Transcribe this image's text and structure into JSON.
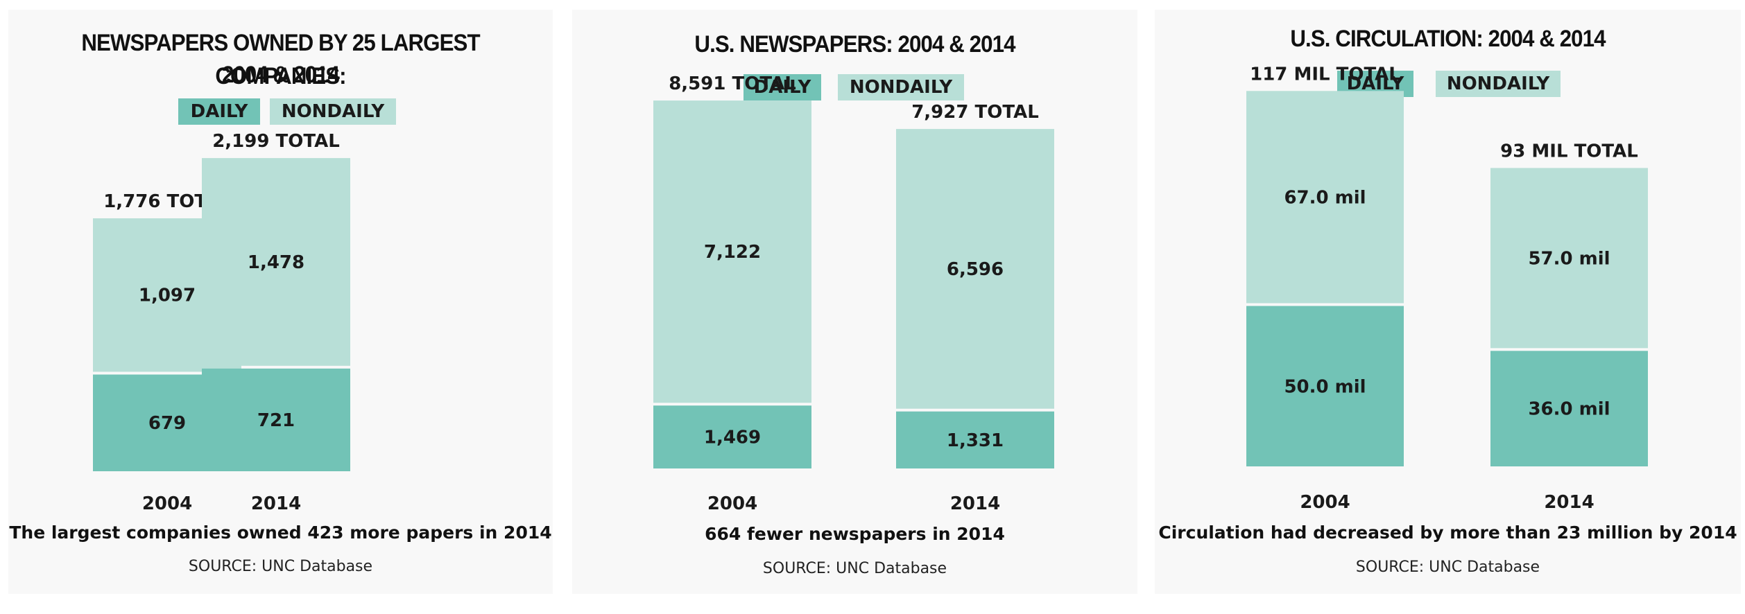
{
  "colors": {
    "daily": "#72c3b6",
    "nondaily": "#b8dfd7"
  },
  "legend": {
    "daily": "DAILY",
    "nondaily": "NONDAILY"
  },
  "chart_data": [
    {
      "type": "bar",
      "stacked": true,
      "title_lines": [
        "NEWSPAPERS OWNED BY 25 LARGEST COMPANIES:",
        "2004 & 2014"
      ],
      "categories": [
        "2004",
        "2014"
      ],
      "series": [
        {
          "name": "DAILY",
          "values": [
            679,
            721
          ],
          "labels": [
            "679",
            "721"
          ]
        },
        {
          "name": "NONDAILY",
          "values": [
            1097,
            1478
          ],
          "labels": [
            "1,097",
            "1,478"
          ]
        }
      ],
      "totals": [
        "1,776 TOTAL",
        "2,199 TOTAL"
      ],
      "caption": "The largest companies owned 423 more papers in 2014",
      "source": "SOURCE: UNC Database"
    },
    {
      "type": "bar",
      "stacked": true,
      "title_lines": [
        "U.S. NEWSPAPERS: 2004 & 2014"
      ],
      "categories": [
        "2004",
        "2014"
      ],
      "series": [
        {
          "name": "DAILY",
          "values": [
            1469,
            1331
          ],
          "labels": [
            "1,469",
            "1,331"
          ]
        },
        {
          "name": "NONDAILY",
          "values": [
            7122,
            6596
          ],
          "labels": [
            "7,122",
            "6,596"
          ]
        }
      ],
      "totals": [
        "8,591 TOTAL",
        "7,927 TOTAL"
      ],
      "caption": "664 fewer newspapers in 2014",
      "source": "SOURCE: UNC Database"
    },
    {
      "type": "bar",
      "stacked": true,
      "title_lines": [
        "U.S. CIRCULATION: 2004 & 2014"
      ],
      "categories": [
        "2004",
        "2014"
      ],
      "series": [
        {
          "name": "DAILY",
          "values": [
            50,
            36
          ],
          "labels": [
            "50.0 mil",
            "36.0 mil"
          ]
        },
        {
          "name": "NONDAILY",
          "values": [
            67,
            57
          ],
          "labels": [
            "67.0 mil",
            "57.0 mil"
          ]
        }
      ],
      "totals": [
        "117 MIL TOTAL",
        "93 MIL TOTAL"
      ],
      "caption": "Circulation had decreased by more than 23 million by 2014",
      "source": "SOURCE: UNC Database"
    }
  ]
}
